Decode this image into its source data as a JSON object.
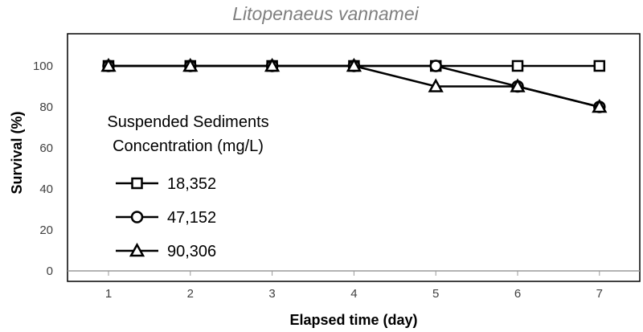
{
  "chart_data": {
    "type": "line",
    "title": "Litopenaeus vannamei",
    "xlabel": "Elapsed time (day)",
    "ylabel": "Survival (%)",
    "x": [
      1,
      2,
      3,
      4,
      5,
      6,
      7
    ],
    "ylim": [
      0,
      120
    ],
    "yticks": [
      0,
      20,
      40,
      60,
      80,
      100
    ],
    "xlim": [
      0.5,
      7.5
    ],
    "grid": false,
    "legend": {
      "title_lines": [
        "Suspended Sediments",
        "Concentration (mg/L)"
      ],
      "placement": "left-inside"
    },
    "series": [
      {
        "name": "18,352",
        "marker": "square",
        "values": [
          100,
          100,
          100,
          100,
          100,
          100,
          100
        ]
      },
      {
        "name": "47,152",
        "marker": "circle",
        "values": [
          100,
          100,
          100,
          100,
          100,
          90,
          80
        ]
      },
      {
        "name": "90,306",
        "marker": "triangle",
        "values": [
          100,
          100,
          100,
          100,
          90,
          90,
          80
        ]
      }
    ],
    "colors": {
      "line": "#000000",
      "marker_fill": "#ffffff",
      "axis": "#000000"
    }
  }
}
